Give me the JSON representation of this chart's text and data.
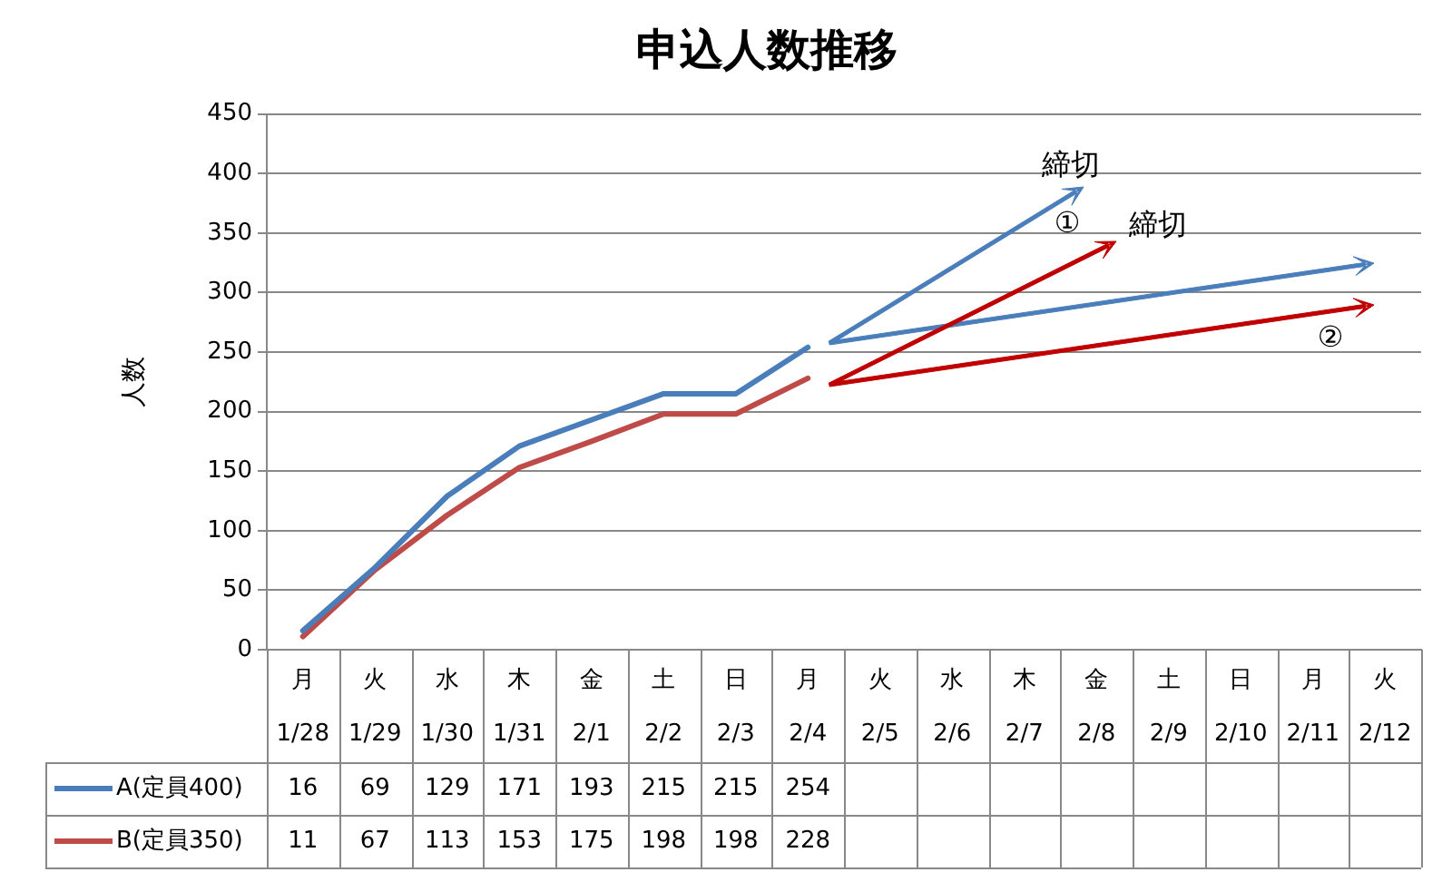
{
  "chart_data": {
    "type": "line",
    "title": "申込人数推移",
    "ylabel": "人数",
    "categories": [
      "月\n1/28",
      "火\n1/29",
      "水\n1/30",
      "木\n1/31",
      "金\n2/1",
      "土\n2/2",
      "日\n2/3",
      "月\n2/4",
      "火\n2/5",
      "水\n2/6",
      "木\n2/7",
      "金\n2/8",
      "土\n2/9",
      "日\n2/10",
      "月\n2/11",
      "火\n2/12"
    ],
    "series": [
      {
        "name": "A(定員400)",
        "color": "#4a7ebb",
        "values": [
          16,
          69,
          129,
          171,
          193,
          215,
          215,
          254,
          null,
          null,
          null,
          null,
          null,
          null,
          null,
          null
        ]
      },
      {
        "name": "B(定員350)",
        "color": "#be4b48",
        "values": [
          11,
          67,
          113,
          153,
          175,
          198,
          198,
          228,
          null,
          null,
          null,
          null,
          null,
          null,
          null,
          null
        ]
      }
    ],
    "ylim": [
      0,
      450
    ],
    "yticks": [
      0,
      50,
      100,
      150,
      200,
      250,
      300,
      350,
      400,
      450
    ],
    "grid": "y",
    "legend": "bottom",
    "data_labels": true,
    "marker": "none",
    "line_style": "solid",
    "annotations": [
      "締切",
      "①",
      "締切",
      "②"
    ]
  }
}
